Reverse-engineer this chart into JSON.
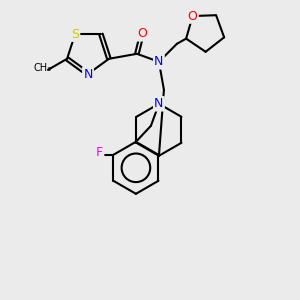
{
  "background_color": "#ebebeb",
  "atom_colors": {
    "N": "#0000ff",
    "O": "#ff0000",
    "S": "#cccc00",
    "F": "#ff00ff",
    "C": "#000000"
  },
  "bond_color": "#000000",
  "bond_width": 1.5,
  "figsize": [
    3.0,
    3.0
  ],
  "dpi": 100
}
